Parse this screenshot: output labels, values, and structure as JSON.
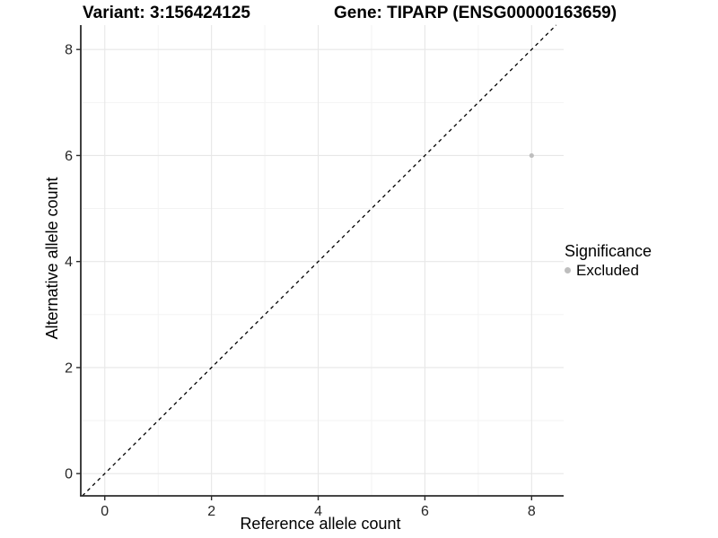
{
  "header": {
    "variant_title": "Variant: 3:156424125",
    "gene_title": "Gene: TIPARP (ENSG00000163659)"
  },
  "legend": {
    "title": "Significance",
    "items": [
      {
        "label": "Excluded",
        "color": "#bebebe"
      }
    ]
  },
  "chart_data": {
    "type": "scatter",
    "title": "Variant: 3:156424125 / Gene: TIPARP (ENSG00000163659)",
    "xlabel": "Reference allele count",
    "ylabel": "Alternative allele count",
    "xlim": [
      -0.45,
      8.6
    ],
    "ylim": [
      -0.42,
      8.46
    ],
    "x_ticks": [
      0,
      2,
      4,
      6,
      8
    ],
    "y_ticks": [
      0,
      2,
      4,
      6,
      8
    ],
    "minor_ticks": [
      1,
      3,
      5,
      7
    ],
    "grid": "major+minor",
    "legend_position": "right",
    "legend_title": "Significance",
    "series": [
      {
        "name": "Excluded",
        "color": "#bebebe",
        "point_radius": 2.6,
        "points": [
          {
            "x": 8,
            "y": 6
          }
        ]
      }
    ],
    "annotations": [
      {
        "type": "identity-line",
        "equation": "y=x",
        "style": "dashed",
        "color": "#000000"
      }
    ],
    "colors": {
      "grid_major": "#e7e7e7",
      "grid_minor": "#f3f3f3",
      "axis_line": "#2b2b2b",
      "background": "#ffffff"
    }
  }
}
